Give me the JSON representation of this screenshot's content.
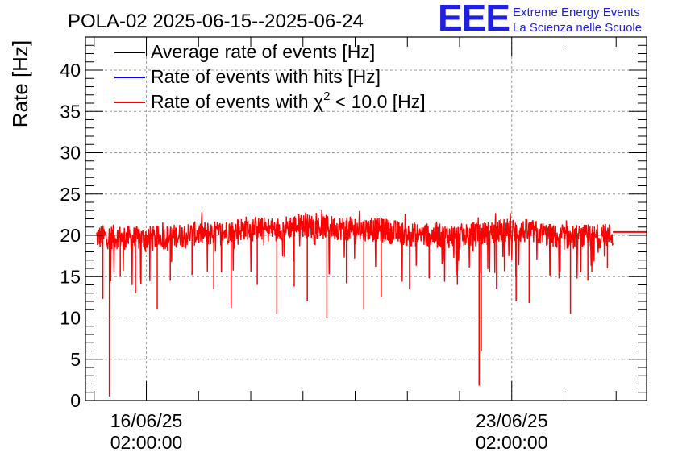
{
  "header": {
    "title": "POLA-02 2025-06-15--2025-06-24",
    "logo_mark": "EEE",
    "logo_line1": "Extreme Energy Events",
    "logo_line2": "La Scienza nelle Scuole",
    "logo_color": "#1f1fe0"
  },
  "chart_data": {
    "type": "line",
    "title": "POLA-02 2025-06-15--2025-06-24",
    "ylabel": "Rate [Hz]",
    "xlabel": "",
    "ylim": [
      0,
      44
    ],
    "xlim": [
      "2025-06-14 22:00",
      "2025-06-25 16:00"
    ],
    "y_ticks": [
      "0",
      "5",
      "10",
      "15",
      "20",
      "25",
      "30",
      "35",
      "40"
    ],
    "y_tick_values": [
      0,
      5,
      10,
      15,
      20,
      25,
      30,
      35,
      40
    ],
    "x_ticks": [
      {
        "date": "16/06/25",
        "time": "02:00:00",
        "at": "2025-06-16 02:00"
      },
      {
        "date": "23/06/25",
        "time": "02:00:00",
        "at": "2025-06-23 02:00"
      }
    ],
    "grid": true,
    "legend_position": "top-left",
    "series": [
      {
        "name": "Average rate of events [Hz]",
        "color": "#000000",
        "legend_prefix": "Average rate of events [Hz]",
        "legend_sup": "",
        "legend_suffix": ""
      },
      {
        "name": "Rate of events with hits [Hz]",
        "color": "#0000ff",
        "legend_prefix": "Rate of events with hits [Hz]",
        "legend_sup": "",
        "legend_suffix": ""
      },
      {
        "name": "Rate of events with χ2 < 10.0 [Hz]",
        "color": "#ff0000",
        "legend_prefix": "Rate of events with χ",
        "legend_sup": "2",
        "legend_suffix": " < 10.0 [Hz]"
      }
    ],
    "baseline": {
      "x": [
        "2025-06-15 03:00",
        "2025-06-15 12:00",
        "2025-06-16 00:00",
        "2025-06-16 12:00",
        "2025-06-17 00:00",
        "2025-06-17 12:00",
        "2025-06-18 00:00",
        "2025-06-18 12:00",
        "2025-06-19 00:00",
        "2025-06-19 12:00",
        "2025-06-20 00:00",
        "2025-06-20 12:00",
        "2025-06-21 00:00",
        "2025-06-21 12:00",
        "2025-06-22 00:00",
        "2025-06-22 12:00",
        "2025-06-23 00:00",
        "2025-06-23 12:00",
        "2025-06-24 00:00",
        "2025-06-24 12:00",
        "2025-06-25 00:00"
      ],
      "y": [
        19.8,
        19.8,
        19.6,
        19.8,
        20.2,
        20.3,
        20.9,
        20.7,
        21.2,
        21.0,
        20.8,
        20.7,
        20.2,
        20.0,
        19.9,
        20.2,
        20.6,
        20.4,
        19.7,
        19.8,
        20.0
      ],
      "spread": 1.5
    },
    "dips": [
      {
        "x": "2025-06-15 06:00",
        "y": 12.3
      },
      {
        "x": "2025-06-15 09:00",
        "y": 0.5
      },
      {
        "x": "2025-06-15 14:00",
        "y": 15.0
      },
      {
        "x": "2025-06-15 21:00",
        "y": 13.0
      },
      {
        "x": "2025-06-16 07:00",
        "y": 11.0
      },
      {
        "x": "2025-06-16 13:00",
        "y": 14.5
      },
      {
        "x": "2025-06-16 23:00",
        "y": 15.2
      },
      {
        "x": "2025-06-17 09:00",
        "y": 13.5
      },
      {
        "x": "2025-06-17 17:00",
        "y": 11.2
      },
      {
        "x": "2025-06-18 05:00",
        "y": 14.0
      },
      {
        "x": "2025-06-18 14:00",
        "y": 10.5
      },
      {
        "x": "2025-06-18 22:00",
        "y": 13.8
      },
      {
        "x": "2025-06-19 04:00",
        "y": 12.0
      },
      {
        "x": "2025-06-19 13:00",
        "y": 10.0
      },
      {
        "x": "2025-06-19 22:00",
        "y": 14.2
      },
      {
        "x": "2025-06-20 06:00",
        "y": 11.0
      },
      {
        "x": "2025-06-20 14:00",
        "y": 12.5
      },
      {
        "x": "2025-06-21 03:00",
        "y": 13.5
      },
      {
        "x": "2025-06-21 12:00",
        "y": 14.8
      },
      {
        "x": "2025-06-22 01:00",
        "y": 14.0
      },
      {
        "x": "2025-06-22 11:00",
        "y": 1.8
      },
      {
        "x": "2025-06-22 12:00",
        "y": 6.0
      },
      {
        "x": "2025-06-22 19:00",
        "y": 13.5
      },
      {
        "x": "2025-06-23 04:00",
        "y": 12.0
      },
      {
        "x": "2025-06-23 10:00",
        "y": 11.8
      },
      {
        "x": "2025-06-23 20:00",
        "y": 15.0
      },
      {
        "x": "2025-06-24 05:00",
        "y": 10.5
      },
      {
        "x": "2025-06-24 13:00",
        "y": 14.5
      },
      {
        "x": "2025-06-24 22:00",
        "y": 16.0
      }
    ],
    "tail": {
      "x_start": "2025-06-25 00:30",
      "x_end": "2025-06-25 16:00",
      "y": 20.4
    },
    "data_start": "2025-06-15 03:00",
    "data_end": "2025-06-25 00:30"
  }
}
